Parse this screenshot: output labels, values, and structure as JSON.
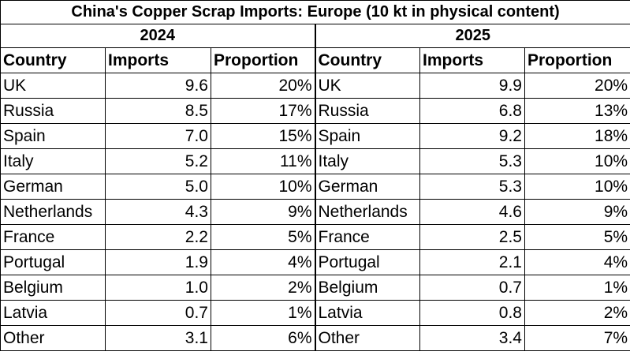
{
  "title": "China's Copper Scrap Imports: Europe (10 kt in physical content)",
  "tables": [
    {
      "year": "2024",
      "columns": [
        "Country",
        "Imports",
        "Proportion"
      ],
      "rows": [
        [
          "UK",
          "9.6",
          "20%"
        ],
        [
          "Russia",
          "8.5",
          "17%"
        ],
        [
          "Spain",
          "7.0",
          "15%"
        ],
        [
          "Italy",
          "5.2",
          "11%"
        ],
        [
          "German",
          "5.0",
          "10%"
        ],
        [
          "Netherlands",
          "4.3",
          "9%"
        ],
        [
          "France",
          "2.2",
          "5%"
        ],
        [
          "Portugal",
          "1.9",
          "4%"
        ],
        [
          "Belgium",
          "1.0",
          "2%"
        ],
        [
          "Latvia",
          "0.7",
          "1%"
        ],
        [
          "Other",
          "3.1",
          "6%"
        ]
      ]
    },
    {
      "year": "2025",
      "columns": [
        "Country",
        "Imports",
        "Proportion"
      ],
      "rows": [
        [
          "UK",
          "9.9",
          "20%"
        ],
        [
          "Russia",
          "6.8",
          "13%"
        ],
        [
          "Spain",
          "9.2",
          "18%"
        ],
        [
          "Italy",
          "5.3",
          "10%"
        ],
        [
          "German",
          "5.3",
          "10%"
        ],
        [
          "Netherlands",
          "4.6",
          "9%"
        ],
        [
          "France",
          "2.5",
          "5%"
        ],
        [
          "Portugal",
          "2.1",
          "4%"
        ],
        [
          "Belgium",
          "0.7",
          "1%"
        ],
        [
          "Latvia",
          "0.8",
          "2%"
        ],
        [
          "Other",
          "3.4",
          "7%"
        ]
      ]
    }
  ]
}
